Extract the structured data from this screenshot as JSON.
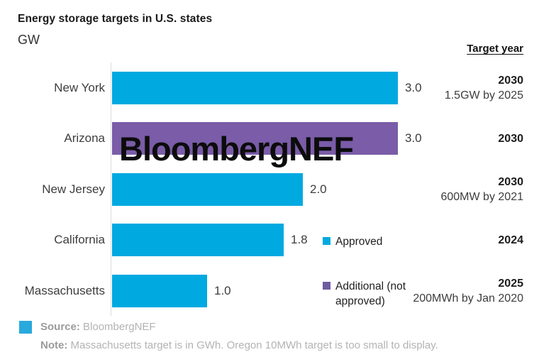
{
  "title": "Energy storage targets in U.S. states",
  "unit_label": "GW",
  "target_year_header": "Target year",
  "watermark": "BloombergNEF",
  "colors": {
    "approved": "#00a9e0",
    "additional": "#7a5ca8",
    "legend_additional": "#6f5b9e",
    "footer_swatch": "#29a9dc",
    "axis": "#dcdcdc"
  },
  "chart_data": {
    "type": "bar",
    "orientation": "horizontal",
    "title": "Energy storage targets in U.S. states",
    "xlabel": "GW",
    "xlim": [
      0,
      3.2
    ],
    "grid": false,
    "legend_position": "right-middle",
    "categories": [
      "New York",
      "Arizona",
      "New Jersey",
      "California",
      "Massachusetts"
    ],
    "rows": [
      {
        "label": "New York",
        "value": 3.0,
        "value_label": "3.0",
        "series": "Approved",
        "color": "#00a9e0",
        "target_year": "2030",
        "target_note": "1.5GW by 2025"
      },
      {
        "label": "Arizona",
        "value": 3.0,
        "value_label": "3.0",
        "series": "Additional (not approved)",
        "color": "#7a5ca8",
        "target_year": "2030",
        "target_note": ""
      },
      {
        "label": "New Jersey",
        "value": 2.0,
        "value_label": "2.0",
        "series": "Approved",
        "color": "#00a9e0",
        "target_year": "2030",
        "target_note": "600MW by 2021"
      },
      {
        "label": "California",
        "value": 1.8,
        "value_label": "1.8",
        "series": "Approved",
        "color": "#00a9e0",
        "target_year": "2024",
        "target_note": ""
      },
      {
        "label": "Massachusetts",
        "value": 1.0,
        "value_label": "1.0",
        "series": "Approved",
        "color": "#00a9e0",
        "target_year": "2025",
        "target_note": "200MWh by Jan 2020"
      }
    ]
  },
  "legend": [
    {
      "label": "Approved",
      "color": "#00a9e0"
    },
    {
      "label": "Additional (not approved)",
      "color": "#6f5b9e"
    }
  ],
  "footer": {
    "source_label": "Source:",
    "source_value": "BloombergNEF",
    "note_label": "Note:",
    "note_value": "Massachusetts target is in GWh. Oregon 10MWh target is too small to display."
  }
}
